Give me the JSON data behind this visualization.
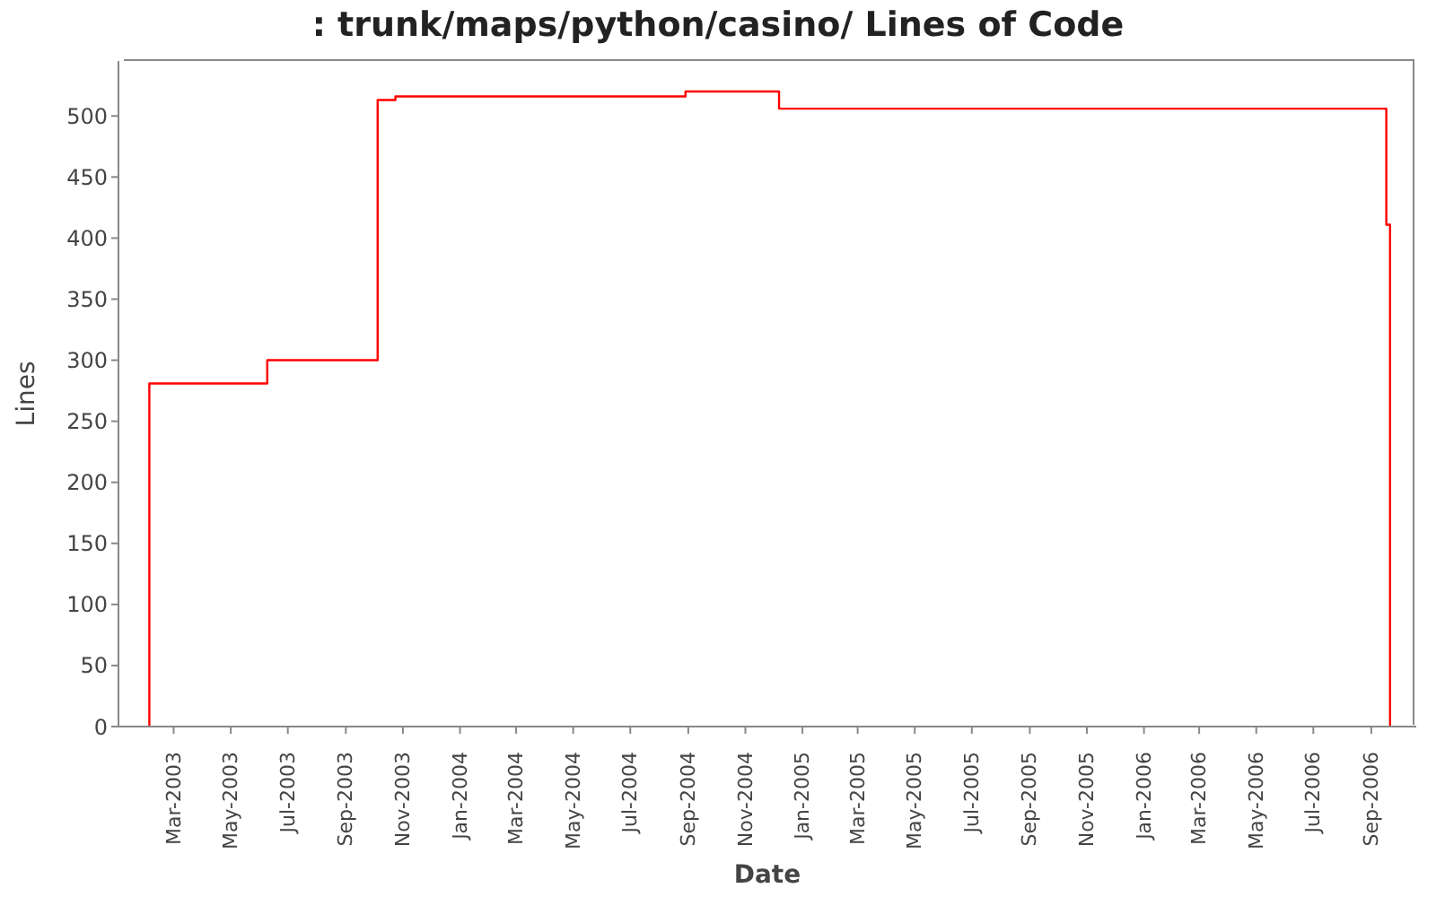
{
  "chart_data": {
    "type": "step",
    "title": ": trunk/maps/python/casino/ Lines of Code",
    "xlabel": "Date",
    "ylabel": "Lines",
    "x": [
      "2003-02-02",
      "2003-02-03",
      "2003-06-09",
      "2003-10-05",
      "2003-10-24",
      "2004-08-29",
      "2004-12-07",
      "2006-09-17",
      "2006-09-21"
    ],
    "series": [
      {
        "color": "#ff0000",
        "values": [
          0,
          281,
          300,
          513,
          516,
          520,
          506,
          411,
          0
        ]
      }
    ],
    "xlim": [
      "2003-01-01",
      "2006-10-19"
    ],
    "xticks": [
      {
        "value": "2003-03",
        "label": "Mar-2003"
      },
      {
        "value": "2003-05",
        "label": "May-2003"
      },
      {
        "value": "2003-07",
        "label": "Jul-2003"
      },
      {
        "value": "2003-09",
        "label": "Sep-2003"
      },
      {
        "value": "2003-11",
        "label": "Nov-2003"
      },
      {
        "value": "2004-01",
        "label": "Jan-2004"
      },
      {
        "value": "2004-03",
        "label": "Mar-2004"
      },
      {
        "value": "2004-05",
        "label": "May-2004"
      },
      {
        "value": "2004-07",
        "label": "Jul-2004"
      },
      {
        "value": "2004-09",
        "label": "Sep-2004"
      },
      {
        "value": "2004-11",
        "label": "Nov-2004"
      },
      {
        "value": "2005-01",
        "label": "Jan-2005"
      },
      {
        "value": "2005-03",
        "label": "Mar-2005"
      },
      {
        "value": "2005-05",
        "label": "May-2005"
      },
      {
        "value": "2005-07",
        "label": "Jul-2005"
      },
      {
        "value": "2005-09",
        "label": "Sep-2005"
      },
      {
        "value": "2005-11",
        "label": "Nov-2005"
      },
      {
        "value": "2006-01",
        "label": "Jan-2006"
      },
      {
        "value": "2006-03",
        "label": "Mar-2006"
      },
      {
        "value": "2006-05",
        "label": "May-2006"
      },
      {
        "value": "2006-07",
        "label": "Jul-2006"
      },
      {
        "value": "2006-09",
        "label": "Sep-2006"
      }
    ],
    "ylim": [
      0,
      545
    ],
    "yticks": [
      0,
      50,
      100,
      150,
      200,
      250,
      300,
      350,
      400,
      450,
      500
    ],
    "marker": "none",
    "line_style": "solid"
  }
}
